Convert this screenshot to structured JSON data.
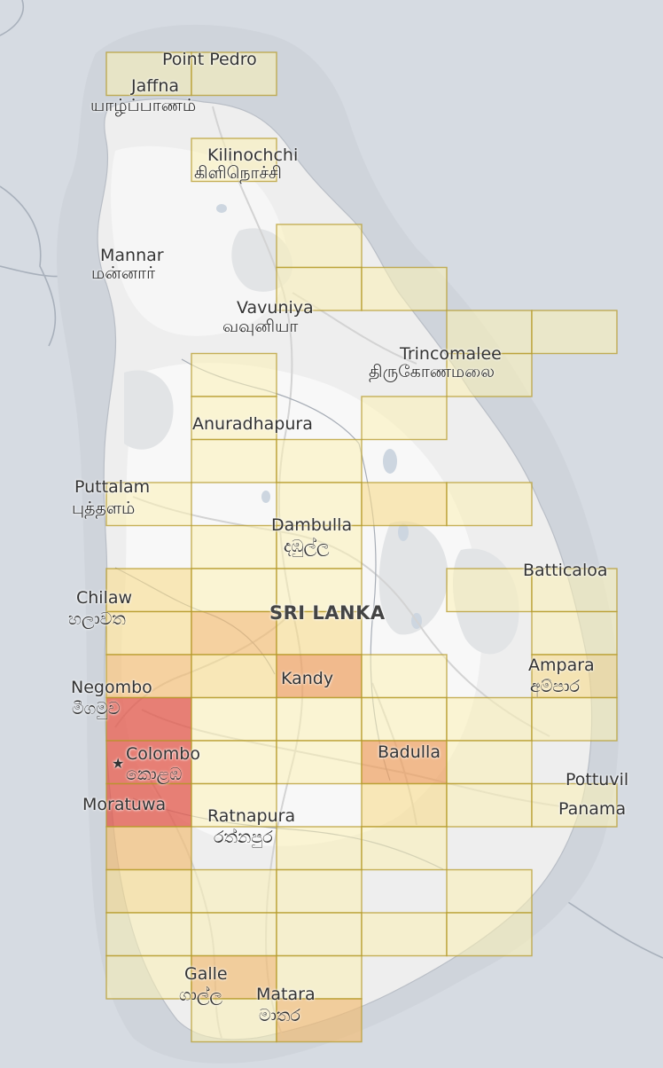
{
  "map": {
    "country_label": "SRI LANKA",
    "capital_marker": "★",
    "colors": {
      "sea": "#d6dbe2",
      "neighbour_land": "#c9cfd8",
      "island": "#ececec",
      "island_light": "#f9f9f9",
      "roads": "#cfcfcf",
      "border": "#9aa3af",
      "grid_stroke": "#b49a2a"
    },
    "color_scale": [
      "#fbf0b4",
      "#f8dc8c",
      "#f3bc70",
      "#ee9f5f",
      "#e2574a"
    ],
    "places": [
      {
        "id": "point-pedro",
        "name": "Point Pedro"
      },
      {
        "id": "jaffna",
        "name": "Jaffna"
      },
      {
        "id": "jaffna-ta",
        "name": "யாழ்ப்பாணம்"
      },
      {
        "id": "kilinochchi",
        "name": "Kilinochchi"
      },
      {
        "id": "kilinochchi-ta",
        "name": "கிளிநொச்சி"
      },
      {
        "id": "mannar",
        "name": "Mannar"
      },
      {
        "id": "mannar-ta",
        "name": "மன்னார்"
      },
      {
        "id": "vavuniya",
        "name": "Vavuniya"
      },
      {
        "id": "vavuniya-ta",
        "name": "வவுனியா"
      },
      {
        "id": "trincomalee",
        "name": "Trincomalee"
      },
      {
        "id": "trincomalee-ta",
        "name": "திருகோணமலை"
      },
      {
        "id": "anuradhapura",
        "name": "Anuradhapura"
      },
      {
        "id": "puttalam",
        "name": "Puttalam"
      },
      {
        "id": "puttalam-ta",
        "name": "புத்தளம்"
      },
      {
        "id": "dambulla",
        "name": "Dambulla"
      },
      {
        "id": "dambulla-si",
        "name": "දඹුල්ල"
      },
      {
        "id": "batticaloa",
        "name": "Batticaloa"
      },
      {
        "id": "chilaw",
        "name": "Chilaw"
      },
      {
        "id": "chilaw-si",
        "name": "හලාවත"
      },
      {
        "id": "kandy",
        "name": "Kandy"
      },
      {
        "id": "ampara",
        "name": "Ampara"
      },
      {
        "id": "ampara-si",
        "name": "අම්පාර"
      },
      {
        "id": "negombo",
        "name": "Negombo"
      },
      {
        "id": "negombo-si",
        "name": "මීගමුව"
      },
      {
        "id": "colombo",
        "name": "Colombo"
      },
      {
        "id": "colombo-si",
        "name": "කොළඹ"
      },
      {
        "id": "badulla",
        "name": "Badulla"
      },
      {
        "id": "pottuvil",
        "name": "Pottuvil"
      },
      {
        "id": "moratuwa",
        "name": "Moratuwa"
      },
      {
        "id": "ratnapura",
        "name": "Ratnapura"
      },
      {
        "id": "ratnapura-si",
        "name": "රත්නපුර"
      },
      {
        "id": "panama",
        "name": "Panama"
      },
      {
        "id": "galle",
        "name": "Galle"
      },
      {
        "id": "galle-si",
        "name": "ගාල්ල"
      },
      {
        "id": "matara",
        "name": "Matara"
      },
      {
        "id": "matara-si",
        "name": "මාතර"
      }
    ],
    "heatmap": {
      "note_levels": "relative intensity 1 (lightest) to 5 (darkest), read from cell colour",
      "rows": [
        {
          "row": 0,
          "cells": [
            {
              "col": 0,
              "level": 1
            },
            {
              "col": 1,
              "level": 1
            }
          ]
        },
        {
          "row": 2,
          "cells": [
            {
              "col": 1,
              "level": 1
            }
          ]
        },
        {
          "row": 4,
          "cells": [
            {
              "col": 2,
              "level": 1
            }
          ]
        },
        {
          "row": 5,
          "cells": [
            {
              "col": 2,
              "level": 1
            },
            {
              "col": 3,
              "level": 1
            }
          ]
        },
        {
          "row": 7,
          "cells": [
            {
              "col": 1,
              "level": 1
            },
            {
              "col": 4,
              "level": 1
            }
          ]
        },
        {
          "row": 8,
          "cells": [
            {
              "col": 1,
              "level": 1
            },
            {
              "col": 3,
              "level": 1
            }
          ]
        },
        {
          "row": 9,
          "cells": [
            {
              "col": 1,
              "level": 1
            },
            {
              "col": 2,
              "level": 1
            }
          ]
        },
        {
          "row": 10,
          "cells": [
            {
              "col": 0,
              "level": 1
            },
            {
              "col": 2,
              "level": 1
            },
            {
              "col": 3,
              "level": 2
            },
            {
              "col": 4,
              "level": 1
            }
          ]
        },
        {
          "row": 11,
          "cells": [
            {
              "col": 1,
              "level": 1
            },
            {
              "col": 2,
              "level": 1
            }
          ]
        },
        {
          "row": 12,
          "cells": [
            {
              "col": 0,
              "level": 2
            },
            {
              "col": 1,
              "level": 1
            },
            {
              "col": 2,
              "level": 1
            },
            {
              "col": 4,
              "level": 1
            },
            {
              "col": 5,
              "level": 1
            }
          ]
        },
        {
          "row": 13,
          "cells": [
            {
              "col": 0,
              "level": 2
            },
            {
              "col": 1,
              "level": 3
            },
            {
              "col": 2,
              "level": 2
            },
            {
              "col": 5,
              "level": 1
            }
          ]
        },
        {
          "row": 14,
          "cells": [
            {
              "col": 0,
              "level": 3
            },
            {
              "col": 1,
              "level": 2
            },
            {
              "col": 2,
              "level": 4
            },
            {
              "col": 3,
              "level": 1
            },
            {
              "col": 5,
              "level": 2
            }
          ]
        },
        {
          "row": 15,
          "cells": [
            {
              "col": 0,
              "level": 5
            },
            {
              "col": 1,
              "level": 1
            },
            {
              "col": 2,
              "level": 1
            },
            {
              "col": 3,
              "level": 1
            },
            {
              "col": 4,
              "level": 1
            },
            {
              "col": 5,
              "level": 1
            }
          ]
        },
        {
          "row": 16,
          "cells": [
            {
              "col": 0,
              "level": 5
            },
            {
              "col": 1,
              "level": 1
            },
            {
              "col": 2,
              "level": 1
            },
            {
              "col": 3,
              "level": 4
            },
            {
              "col": 4,
              "level": 1
            }
          ]
        },
        {
          "row": 17,
          "cells": [
            {
              "col": 0,
              "level": 5
            },
            {
              "col": 1,
              "level": 1
            },
            {
              "col": 3,
              "level": 2
            },
            {
              "col": 4,
              "level": 1
            },
            {
              "col": 5,
              "level": 1
            }
          ]
        },
        {
          "row": 18,
          "cells": [
            {
              "col": 0,
              "level": 3
            },
            {
              "col": 2,
              "level": 1
            },
            {
              "col": 3,
              "level": 1
            }
          ]
        },
        {
          "row": 19,
          "cells": [
            {
              "col": 0,
              "level": 2
            },
            {
              "col": 1,
              "level": 1
            },
            {
              "col": 2,
              "level": 1
            },
            {
              "col": 4,
              "level": 1
            }
          ]
        },
        {
          "row": 20,
          "cells": [
            {
              "col": 0,
              "level": 1
            },
            {
              "col": 1,
              "level": 1
            },
            {
              "col": 2,
              "level": 1
            },
            {
              "col": 3,
              "level": 1
            },
            {
              "col": 4,
              "level": 1
            }
          ]
        },
        {
          "row": 21,
          "cells": [
            {
              "col": 0,
              "level": 1
            },
            {
              "col": 1,
              "level": 3
            },
            {
              "col": 2,
              "level": 1
            }
          ]
        },
        {
          "row": 22,
          "cells": [
            {
              "col": 1,
              "level": 1
            },
            {
              "col": 2,
              "level": 3
            }
          ]
        }
      ],
      "extra_cells": [
        {
          "row": 6,
          "col": 4,
          "level": 1
        },
        {
          "row": 6,
          "col": 5,
          "level": 1
        },
        {
          "row": 0,
          "col": 0,
          "level": 1
        }
      ]
    }
  }
}
